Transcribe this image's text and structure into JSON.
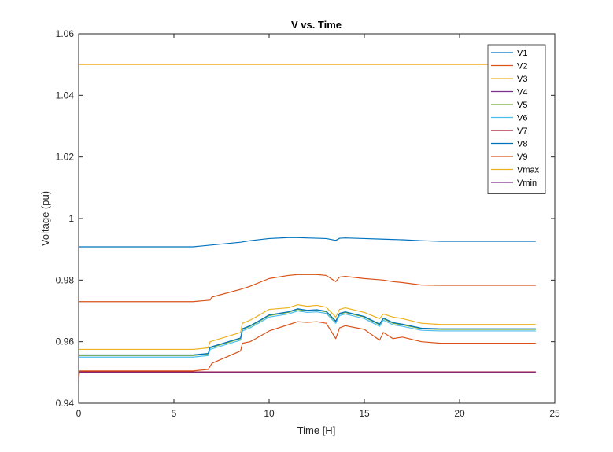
{
  "chart_data": {
    "type": "line",
    "title": "V vs. Time",
    "xlabel": "Time [H]",
    "ylabel": "Voltage (pu)",
    "xlim": [
      0,
      25
    ],
    "ylim": [
      0.94,
      1.06
    ],
    "xticks": [
      "0",
      "5",
      "10",
      "15",
      "20",
      "25"
    ],
    "yticks": [
      "0.94",
      "0.96",
      "0.98",
      "1",
      "1.02",
      "1.04",
      "1.06"
    ],
    "grid": false,
    "legend_position": "top-right",
    "series": [
      {
        "name": "V1",
        "color": "#0072BD",
        "x": [
          0,
          6,
          7,
          8.5,
          9,
          10,
          11,
          11.5,
          12,
          12.5,
          13,
          13.5,
          13.7,
          14,
          15,
          16,
          17,
          18,
          19,
          20,
          24
        ],
        "y": [
          0.9908,
          0.9908,
          0.9914,
          0.9923,
          0.9928,
          0.9935,
          0.9938,
          0.9938,
          0.9937,
          0.9936,
          0.9935,
          0.9929,
          0.9936,
          0.9937,
          0.9935,
          0.9933,
          0.9931,
          0.9928,
          0.9926,
          0.9926,
          0.9926
        ]
      },
      {
        "name": "V2",
        "color": "#D95319",
        "x": [
          0,
          6,
          6.9,
          7,
          8.5,
          9,
          10,
          11,
          11.5,
          12,
          12.5,
          13,
          13.5,
          13.7,
          14,
          15,
          16,
          16.5,
          17,
          18,
          19,
          24
        ],
        "y": [
          0.973,
          0.973,
          0.9735,
          0.9745,
          0.977,
          0.978,
          0.9805,
          0.9815,
          0.9818,
          0.9818,
          0.9818,
          0.9815,
          0.9795,
          0.981,
          0.9812,
          0.9805,
          0.98,
          0.9795,
          0.9792,
          0.9784,
          0.9783,
          0.9783
        ]
      },
      {
        "name": "V3",
        "color": "#EDB120",
        "x": [
          0,
          6,
          6.8,
          6.9,
          8.5,
          8.6,
          9,
          9.3,
          10,
          11,
          11.5,
          12,
          12.5,
          13,
          13.5,
          13.7,
          14,
          15,
          15.8,
          16,
          16.5,
          17,
          18,
          19,
          24
        ],
        "y": [
          0.9575,
          0.9575,
          0.958,
          0.96,
          0.963,
          0.966,
          0.967,
          0.968,
          0.9705,
          0.971,
          0.972,
          0.9715,
          0.9718,
          0.9712,
          0.968,
          0.9705,
          0.971,
          0.9695,
          0.9675,
          0.969,
          0.968,
          0.9675,
          0.966,
          0.9656,
          0.9656
        ]
      },
      {
        "name": "V4",
        "color": "#7E2F8E",
        "x": [
          0,
          24
        ],
        "y": [
          0.95,
          0.95
        ]
      },
      {
        "name": "V5",
        "color": "#77AC30",
        "x": [
          0,
          6,
          6.8,
          6.9,
          8.5,
          8.6,
          9,
          9.3,
          10,
          11,
          11.5,
          12,
          12.5,
          13,
          13.5,
          13.7,
          14,
          15,
          15.8,
          16,
          16.5,
          17,
          18,
          19,
          24
        ],
        "y": [
          0.9555,
          0.9555,
          0.956,
          0.958,
          0.961,
          0.964,
          0.965,
          0.966,
          0.9685,
          0.9695,
          0.9705,
          0.97,
          0.9702,
          0.9697,
          0.9665,
          0.969,
          0.9695,
          0.968,
          0.9655,
          0.9675,
          0.966,
          0.9655,
          0.9642,
          0.964,
          0.964
        ]
      },
      {
        "name": "V6",
        "color": "#4DBEEE",
        "x": [
          0,
          6,
          6.8,
          6.9,
          8.5,
          8.6,
          9,
          9.3,
          10,
          11,
          11.5,
          12,
          12.5,
          13,
          13.5,
          13.7,
          14,
          15,
          15.8,
          16,
          16.5,
          17,
          18,
          19,
          24
        ],
        "y": [
          0.955,
          0.955,
          0.9555,
          0.9575,
          0.9605,
          0.9635,
          0.9645,
          0.9655,
          0.968,
          0.969,
          0.97,
          0.9695,
          0.9697,
          0.9692,
          0.966,
          0.9685,
          0.969,
          0.9675,
          0.965,
          0.967,
          0.9655,
          0.965,
          0.9637,
          0.9635,
          0.9635
        ]
      },
      {
        "name": "V7",
        "color": "#A2142F",
        "x": [
          0,
          24
        ],
        "y": [
          0.9502,
          0.9502
        ]
      },
      {
        "name": "V8",
        "color": "#0072BD",
        "x": [
          0,
          6,
          6.8,
          6.9,
          8.5,
          8.6,
          9,
          9.3,
          10,
          11,
          11.5,
          12,
          12.5,
          13,
          13.5,
          13.7,
          14,
          15,
          15.8,
          16,
          16.5,
          17,
          18,
          19,
          24
        ],
        "y": [
          0.9557,
          0.9557,
          0.9562,
          0.9582,
          0.9612,
          0.9642,
          0.9652,
          0.9662,
          0.9687,
          0.9697,
          0.9707,
          0.9702,
          0.9704,
          0.9699,
          0.9667,
          0.9692,
          0.9697,
          0.9682,
          0.9657,
          0.9677,
          0.9662,
          0.9657,
          0.9644,
          0.9642,
          0.9642
        ]
      },
      {
        "name": "V9",
        "color": "#D95319",
        "x": [
          0,
          0.05,
          6,
          6.8,
          7,
          8.5,
          8.6,
          9,
          9.3,
          10,
          11,
          11.5,
          12,
          12.5,
          13,
          13.5,
          13.7,
          14,
          15,
          15.8,
          16,
          16.5,
          17,
          18,
          19,
          24
        ],
        "y": [
          0.948,
          0.9505,
          0.9505,
          0.951,
          0.953,
          0.957,
          0.9595,
          0.96,
          0.961,
          0.9635,
          0.9655,
          0.9665,
          0.9663,
          0.9665,
          0.966,
          0.961,
          0.9645,
          0.9652,
          0.964,
          0.9605,
          0.963,
          0.961,
          0.9615,
          0.96,
          0.9595,
          0.9595
        ]
      },
      {
        "name": "Vmax",
        "color": "#EDB120",
        "x": [
          0,
          24
        ],
        "y": [
          1.05,
          1.05
        ]
      },
      {
        "name": "Vmin",
        "color": "#7E2F8E",
        "x": [
          0,
          24
        ],
        "y": [
          0.95,
          0.95
        ]
      }
    ]
  }
}
